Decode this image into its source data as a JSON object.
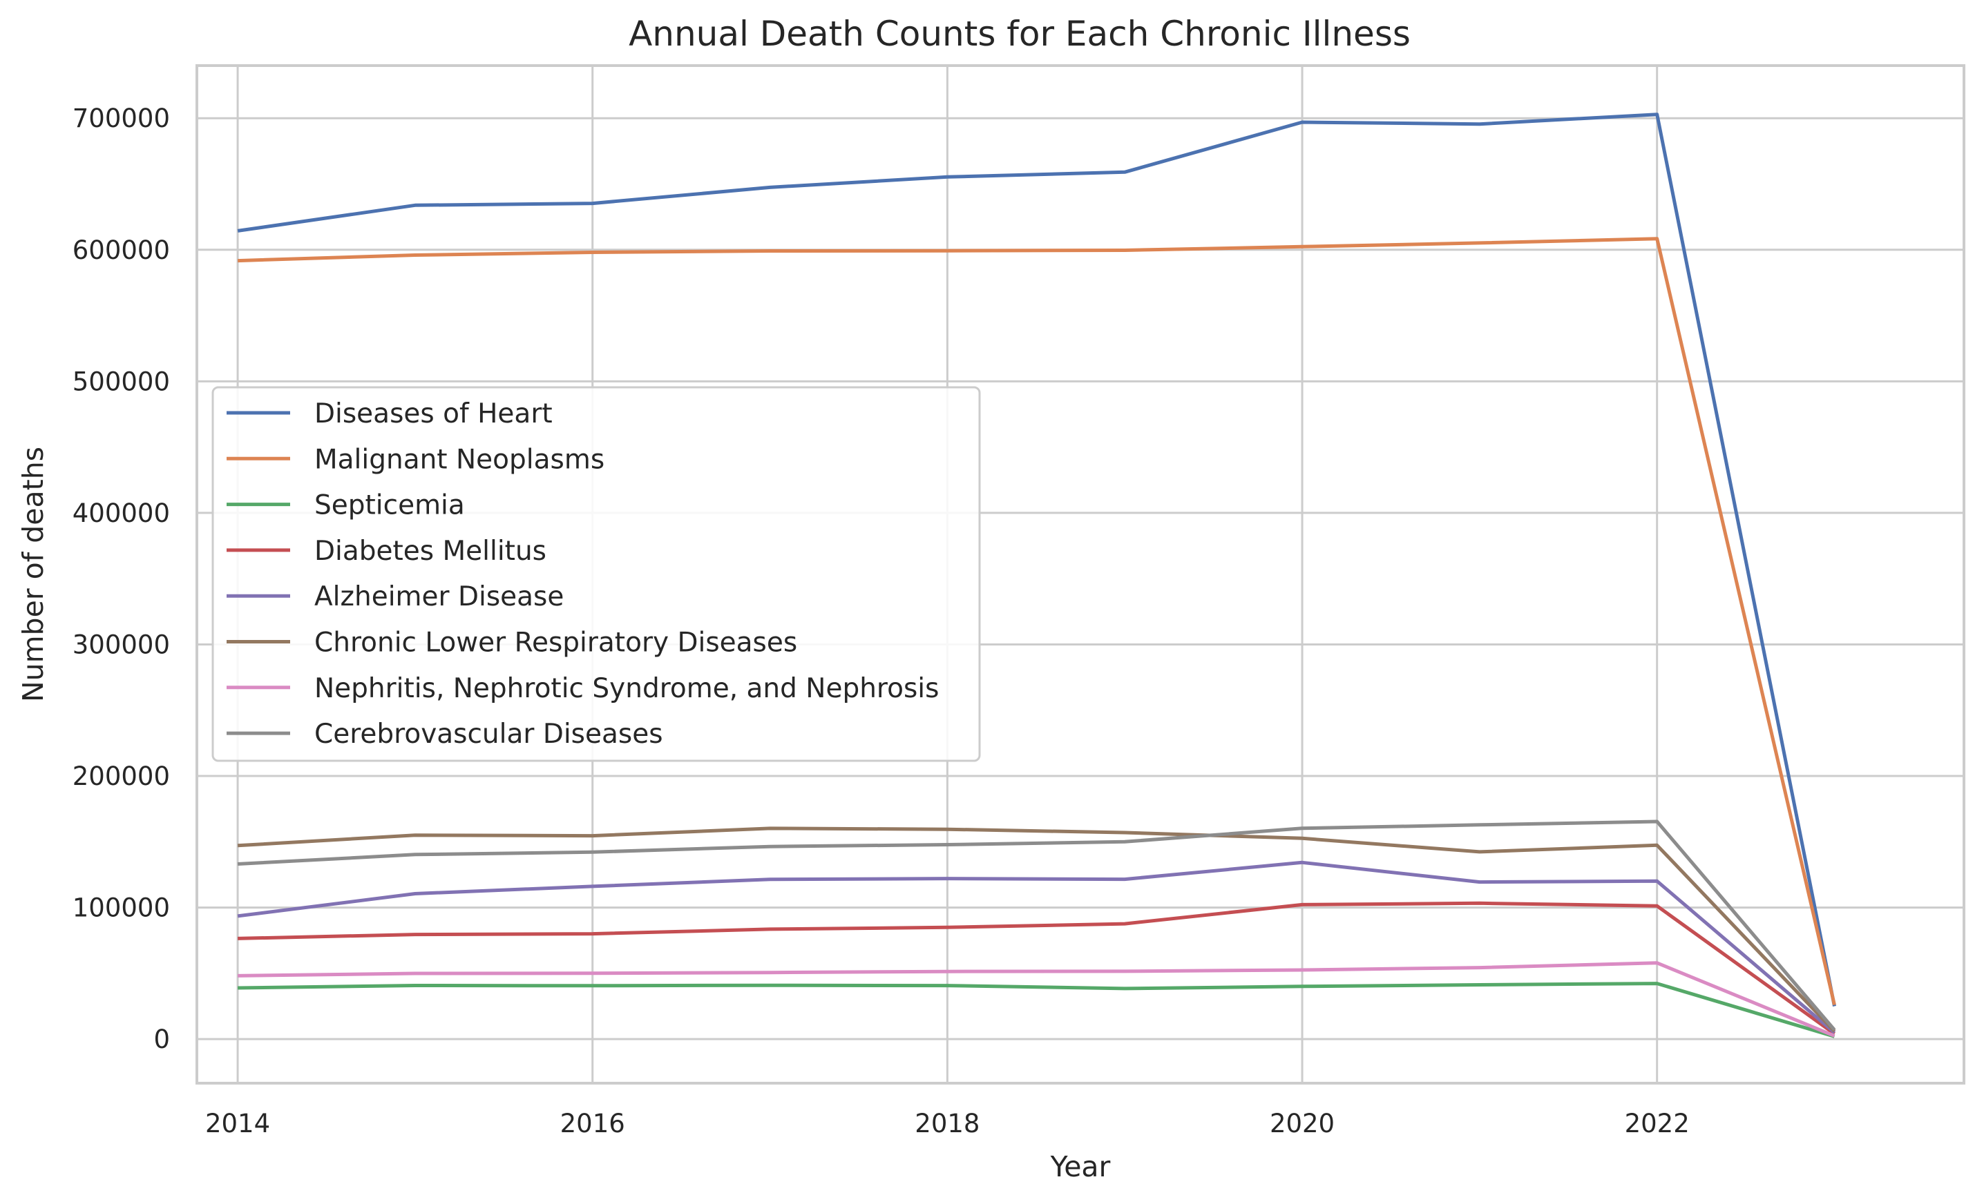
{
  "chart_data": {
    "type": "line",
    "title": "Annual Death Counts for Each Chronic Illness",
    "xlabel": "Year",
    "ylabel": "Number of deaths",
    "x": [
      2014,
      2015,
      2016,
      2017,
      2018,
      2019,
      2020,
      2021,
      2022,
      2023
    ],
    "xlim": [
      2013.77,
      2023.73
    ],
    "ylim": [
      -33500,
      740000
    ],
    "xticks": [
      2014,
      2016,
      2018,
      2020,
      2022
    ],
    "yticks": [
      0,
      100000,
      200000,
      300000,
      400000,
      500000,
      600000,
      700000
    ],
    "grid": true,
    "legend_position": "center-left",
    "series": [
      {
        "name": "Diseases of Heart",
        "color": "#4c72b0",
        "values": [
          614348,
          633842,
          635260,
          647457,
          655381,
          659041,
          696962,
          695547,
          702880,
          25000
        ]
      },
      {
        "name": "Malignant Neoplasms",
        "color": "#dd8452",
        "values": [
          591699,
          595930,
          598038,
          599108,
          599274,
          599601,
          602350,
          605213,
          608371,
          26000
        ]
      },
      {
        "name": "Septicemia",
        "color": "#55a868",
        "values": [
          38940,
          40773,
          40613,
          40922,
          40718,
          38431,
          40050,
          41281,
          42256,
          2000
        ]
      },
      {
        "name": "Diabetes Mellitus",
        "color": "#c44e52",
        "values": [
          76488,
          79535,
          80058,
          83564,
          84946,
          87647,
          102188,
          103294,
          101209,
          4000
        ]
      },
      {
        "name": "Alzheimer Disease",
        "color": "#8172b3",
        "values": [
          93541,
          110561,
          116103,
          121404,
          122019,
          121499,
          134242,
          119399,
          120122,
          5000
        ]
      },
      {
        "name": "Chronic Lower Respiratory Diseases",
        "color": "#937860",
        "values": [
          147101,
          155041,
          154596,
          160201,
          159486,
          156979,
          152657,
          142342,
          147382,
          6000
        ]
      },
      {
        "name": "Nephritis, Nephrotic Syndrome, and Nephrosis",
        "color": "#da8bc3",
        "values": [
          48146,
          49959,
          50046,
          50633,
          51386,
          51565,
          52547,
          54358,
          57937,
          2500
        ]
      },
      {
        "name": "Cerebrovascular Diseases",
        "color": "#8c8c8c",
        "values": [
          133103,
          140323,
          142142,
          146383,
          147810,
          150005,
          160264,
          162890,
          165393,
          7000
        ]
      }
    ]
  }
}
